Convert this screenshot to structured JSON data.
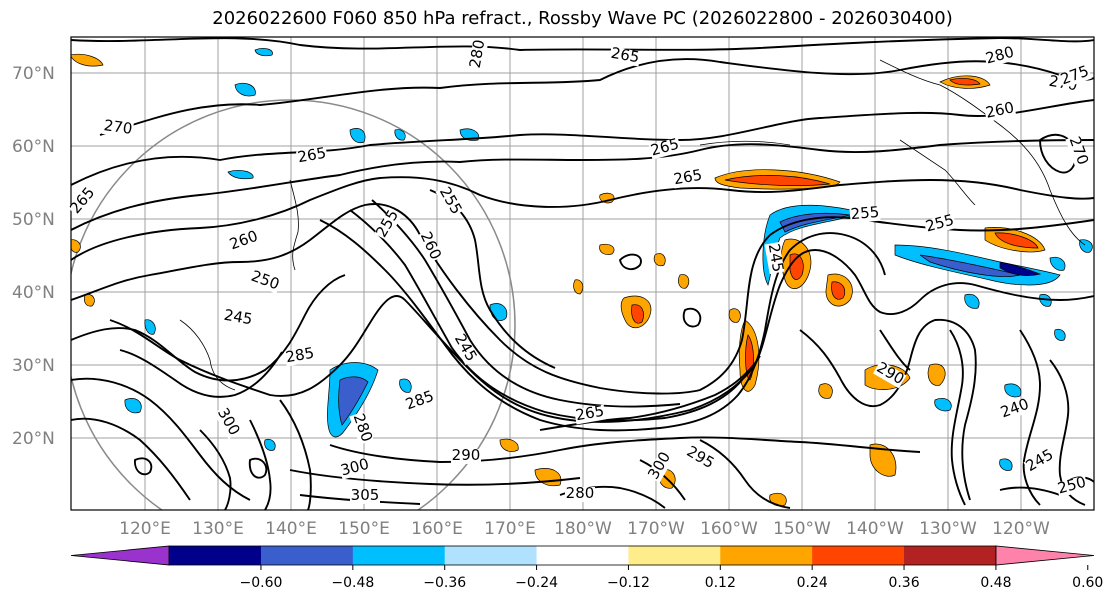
{
  "title": "2026022600 F060 850 hPa refract., Rossby Wave PC (2026022800 - 2026030400)",
  "lat_labels": [
    "70°N",
    "60°N",
    "50°N",
    "40°N",
    "30°N",
    "20°N"
  ],
  "lon_labels": [
    "120°E",
    "130°E",
    "140°E",
    "150°E",
    "160°E",
    "170°E",
    "180°W",
    "170°W",
    "160°W",
    "150°W",
    "140°W",
    "130°W",
    "120°W"
  ],
  "colorbar": {
    "colors": [
      "#9a32cd",
      "#00008b",
      "#3a5fcd",
      "#00bfff",
      "#b0e2ff",
      "#ffffff",
      "#ffec8b",
      "#ffa500",
      "#ff4500",
      "#b22222",
      "#ff82ab"
    ],
    "tick_labels": [
      "−0.60",
      "−0.48",
      "−0.36",
      "−0.24",
      "−0.12",
      "0.12",
      "0.24",
      "0.36",
      "0.48",
      "0.60"
    ]
  },
  "contour_labels": [
    {
      "text": "265",
      "rot": 10
    },
    {
      "text": "280",
      "rot": -80
    },
    {
      "text": "270",
      "rot": 8
    },
    {
      "text": "265",
      "rot": -10
    },
    {
      "text": "265",
      "rot": -15
    },
    {
      "text": "260",
      "rot": -12
    },
    {
      "text": "265",
      "rot": -10
    },
    {
      "text": "270",
      "rot": 10
    },
    {
      "text": "280",
      "rot": -15
    },
    {
      "text": "275",
      "rot": -20
    },
    {
      "text": "270",
      "rot": 70
    },
    {
      "text": "255",
      "rot": -60
    },
    {
      "text": "255",
      "rot": 60
    },
    {
      "text": "260",
      "rot": 65
    },
    {
      "text": "260",
      "rot": -20
    },
    {
      "text": "265",
      "rot": -50
    },
    {
      "text": "250",
      "rot": 20
    },
    {
      "text": "245",
      "rot": 10
    },
    {
      "text": "245",
      "rot": 60
    },
    {
      "text": "285",
      "rot": -10
    },
    {
      "text": "285",
      "rot": -20
    },
    {
      "text": "280",
      "rot": 70
    },
    {
      "text": "290",
      "rot": 0
    },
    {
      "text": "300",
      "rot": -15
    },
    {
      "text": "305",
      "rot": 0
    },
    {
      "text": "265",
      "rot": -10
    },
    {
      "text": "255",
      "rot": -15
    },
    {
      "text": "255",
      "rot": -5
    },
    {
      "text": "245",
      "rot": 80
    },
    {
      "text": "240",
      "rot": -20
    },
    {
      "text": "245",
      "rot": -30
    },
    {
      "text": "250",
      "rot": -15
    },
    {
      "text": "295",
      "rot": 30
    },
    {
      "text": "290",
      "rot": 30
    },
    {
      "text": "280",
      "rot": 0
    },
    {
      "text": "300",
      "rot": -60
    },
    {
      "text": "300",
      "rot": 60
    }
  ]
}
